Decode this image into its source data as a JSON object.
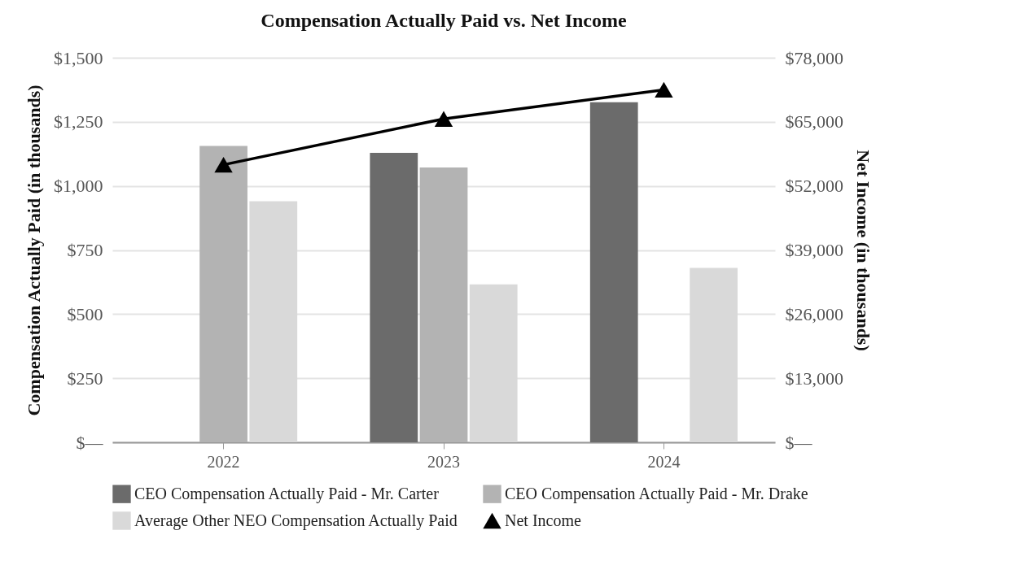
{
  "chart_data": {
    "type": "bar",
    "title": "Compensation Actually Paid vs. Net Income",
    "ylabel": "Compensation Actually Paid (in thousands)",
    "y2label": "Net Income (in thousands)",
    "categories": [
      "2022",
      "2023",
      "2024"
    ],
    "series": [
      {
        "name": "CEO Compensation Actually Paid - Mr. Carter",
        "color": "#6b6b6b",
        "values": [
          null,
          1129,
          1326
        ]
      },
      {
        "name": "CEO Compensation Actually Paid - Mr. Drake",
        "color": "#b3b3b3",
        "values": [
          1156,
          1072,
          null
        ]
      },
      {
        "name": "Average Other NEO Compensation Actually Paid",
        "color": "#d9d9d9",
        "values": [
          940,
          616,
          680
        ]
      },
      {
        "name": "Net Income",
        "type": "line",
        "axis": "y2",
        "color": "#000000",
        "marker": "triangle",
        "values": [
          56300,
          65600,
          71500
        ]
      }
    ],
    "ylim": [
      0,
      1500
    ],
    "yticks": [
      {
        "value": 0,
        "label": "$—"
      },
      {
        "value": 250,
        "label": "$250"
      },
      {
        "value": 500,
        "label": "$500"
      },
      {
        "value": 750,
        "label": "$750"
      },
      {
        "value": 1000,
        "label": "$1,000"
      },
      {
        "value": 1250,
        "label": "$1,250"
      },
      {
        "value": 1500,
        "label": "$1,500"
      }
    ],
    "y2lim": [
      0,
      78000
    ],
    "y2ticks": [
      {
        "value": 0,
        "label": "$—"
      },
      {
        "value": 13000,
        "label": "$13,000"
      },
      {
        "value": 26000,
        "label": "$26,000"
      },
      {
        "value": 39000,
        "label": "$39,000"
      },
      {
        "value": 52000,
        "label": "$52,000"
      },
      {
        "value": 65000,
        "label": "$65,000"
      },
      {
        "value": 78000,
        "label": "$78,000"
      }
    ],
    "grid": "y",
    "legend": "bottom"
  }
}
